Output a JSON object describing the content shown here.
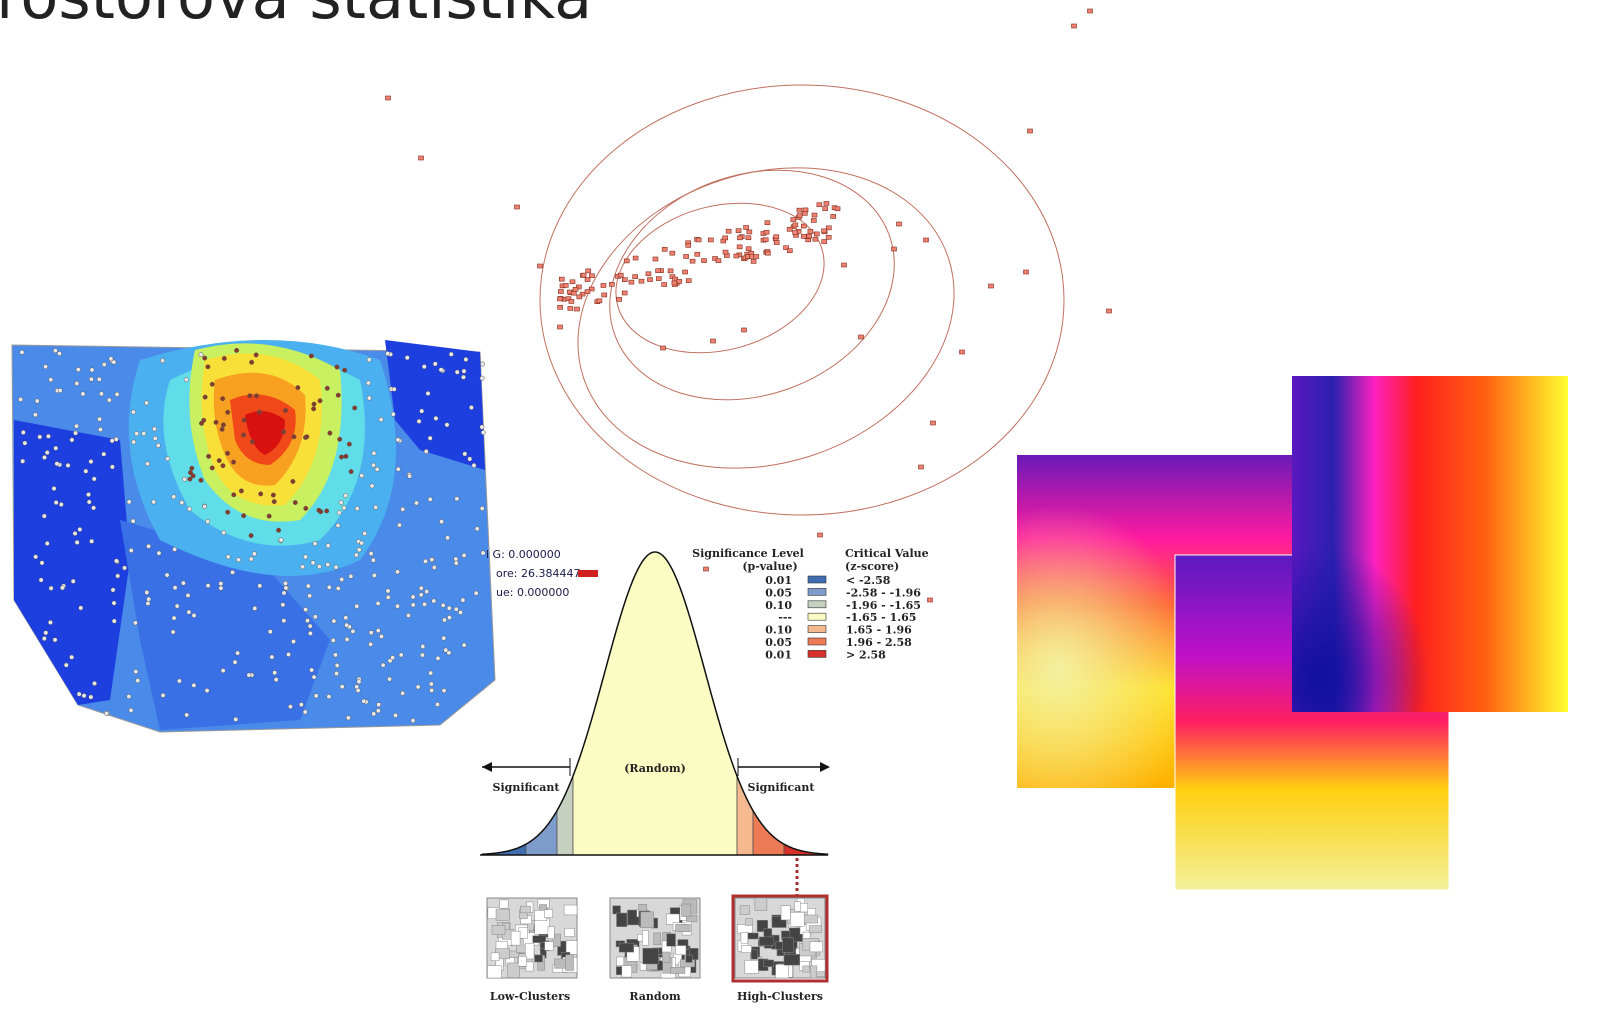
{
  "title": "Prostorová statistika",
  "general_g": {
    "lines": [
      "l G: 0.000000",
      "ore: 26.384447",
      "ue: 0.000000"
    ]
  },
  "distribution": {
    "random": "(Random)",
    "significant_left": "Significant",
    "significant_right": "Significant",
    "legend": {
      "header_p": [
        "Significance Level",
        "(p-value)"
      ],
      "header_z": [
        "Critical Value",
        "(z-score)"
      ],
      "rows": [
        {
          "p": "0.01",
          "z": "< -2.58",
          "color": "#3f6db0"
        },
        {
          "p": "0.05",
          "z": "-2.58 - -1.96",
          "color": "#7d9ccb"
        },
        {
          "p": "0.10",
          "z": "-1.96 - -1.65",
          "color": "#c6d0c0"
        },
        {
          "p": "---",
          "z": "-1.65 - 1.65",
          "color": "#fbfbc4"
        },
        {
          "p": "0.10",
          "z": "1.65 - 1.96",
          "color": "#f5b98f"
        },
        {
          "p": "0.05",
          "z": "1.96 - 2.58",
          "color": "#ec7a55"
        },
        {
          "p": "0.01",
          "z": "> 2.58",
          "color": "#d7302a"
        }
      ]
    }
  },
  "maps": [
    "Low-Clusters",
    "Random",
    "High-Clusters"
  ]
}
